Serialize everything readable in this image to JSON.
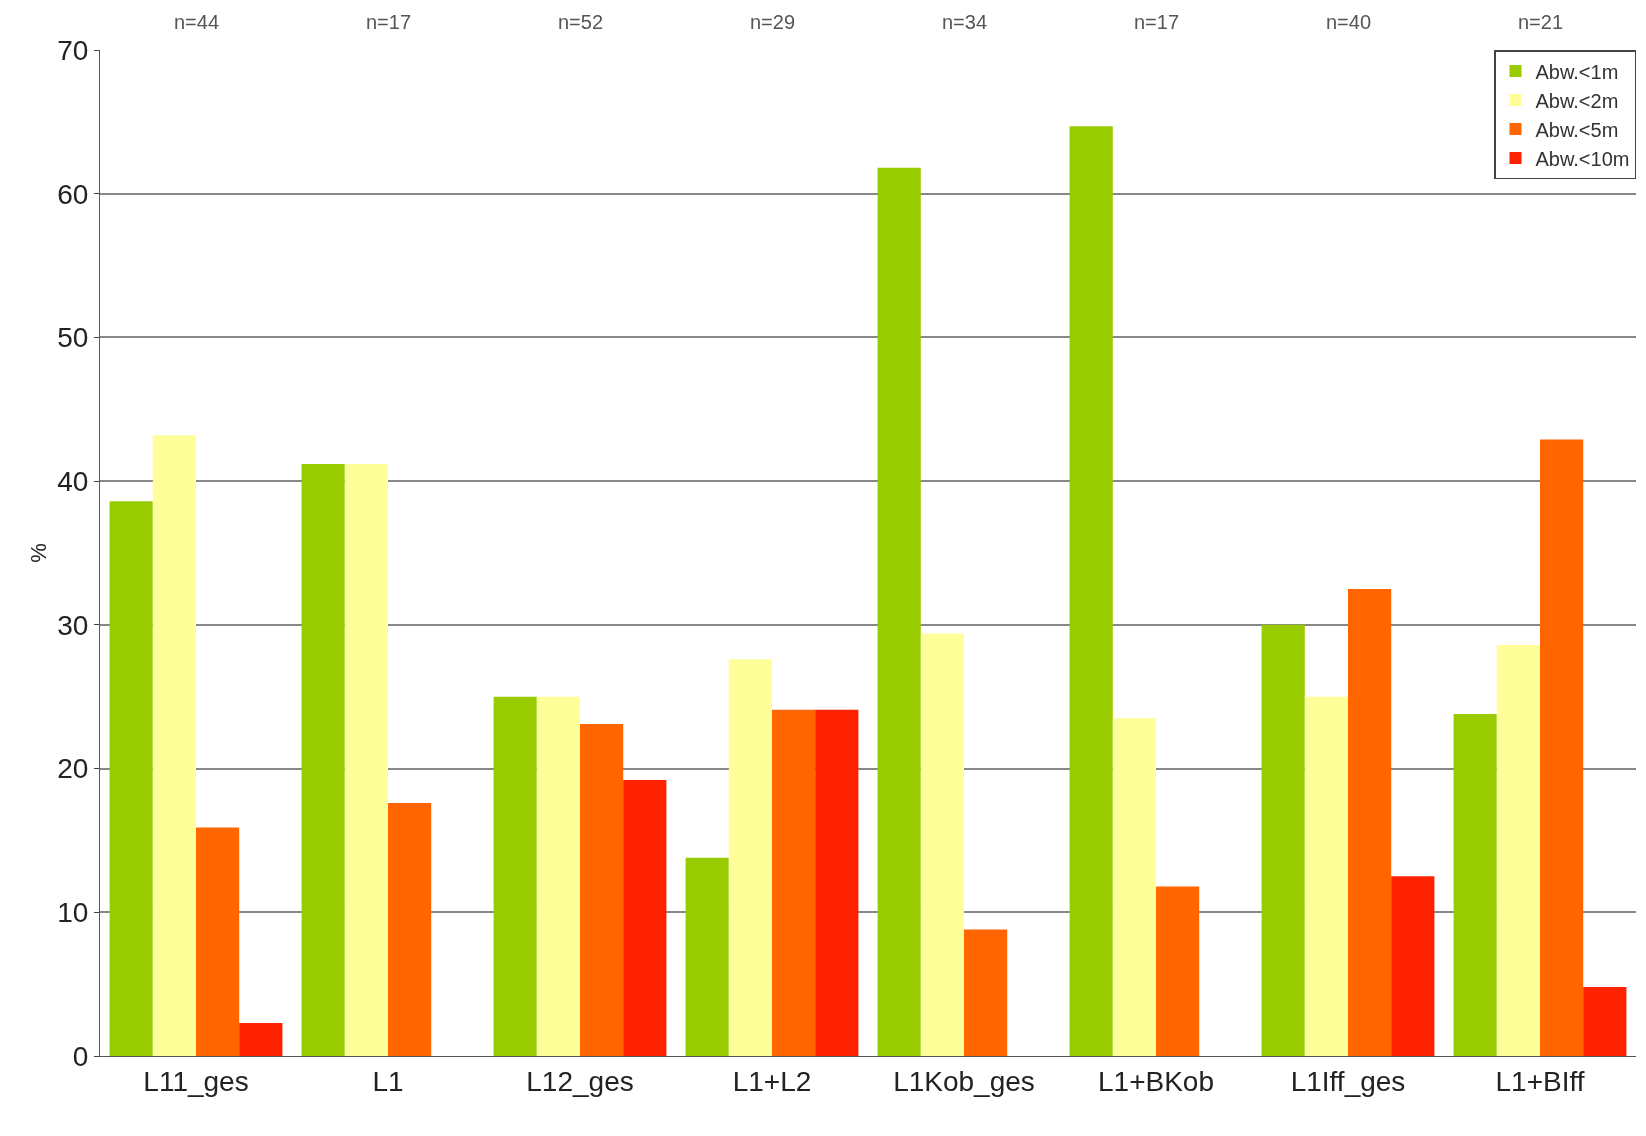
{
  "chart_data": {
    "type": "bar",
    "ylabel": "%",
    "categories": [
      "L11_ges",
      "L1",
      "L12_ges",
      "L1+L2",
      "L1Kob_ges",
      "L1+BKob",
      "L1Iff_ges",
      "L1+BIff"
    ],
    "series": [
      {
        "name": "Abw.<1m",
        "color": "#99cc00",
        "values": [
          38.6,
          41.2,
          25.0,
          13.8,
          61.8,
          64.7,
          30.0,
          23.8
        ]
      },
      {
        "name": "Abw.<2m",
        "color": "#ffff99",
        "values": [
          43.2,
          41.2,
          25.0,
          27.6,
          29.4,
          23.5,
          25.0,
          28.6
        ]
      },
      {
        "name": "Abw.<5m",
        "color": "#ff6600",
        "values": [
          15.9,
          17.6,
          23.1,
          24.1,
          8.8,
          11.8,
          32.5,
          42.9
        ]
      },
      {
        "name": "Abw.<10m",
        "color": "#ff2200",
        "values": [
          2.3,
          0,
          19.2,
          24.1,
          0,
          0,
          12.5,
          4.8
        ]
      }
    ],
    "ylim": [
      0,
      70
    ],
    "yticks": [
      0,
      10,
      20,
      30,
      40,
      50,
      60,
      70
    ],
    "grid": "y",
    "legend": "top right",
    "annotations": [
      "n=44",
      "n=17",
      "n=52",
      "n=29",
      "n=34",
      "n=17",
      "n=40",
      "n=21"
    ]
  }
}
